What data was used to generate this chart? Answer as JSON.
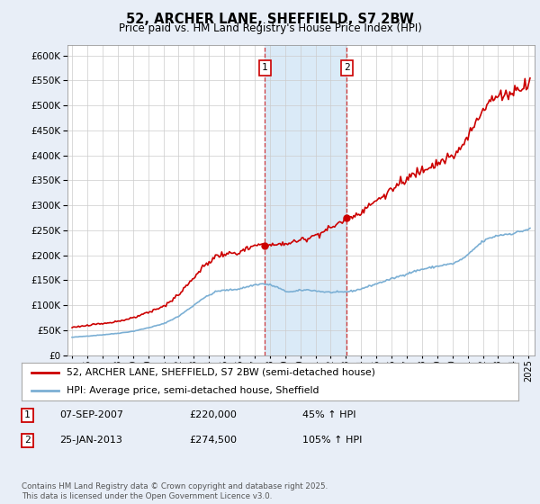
{
  "title": "52, ARCHER LANE, SHEFFIELD, S7 2BW",
  "subtitle": "Price paid vs. HM Land Registry's House Price Index (HPI)",
  "ylim": [
    0,
    620000
  ],
  "yticks": [
    0,
    50000,
    100000,
    150000,
    200000,
    250000,
    300000,
    350000,
    400000,
    450000,
    500000,
    550000,
    600000
  ],
  "xlim_start": 1994.7,
  "xlim_end": 2025.4,
  "bg_color": "#e8eef7",
  "plot_bg_color": "#ffffff",
  "red_color": "#cc0000",
  "blue_color": "#7bafd4",
  "shade_color": "#daeaf7",
  "transaction1_x": 2007.68,
  "transaction1_y": 220000,
  "transaction2_x": 2013.06,
  "transaction2_y": 274500,
  "legend_label1": "52, ARCHER LANE, SHEFFIELD, S7 2BW (semi-detached house)",
  "legend_label2": "HPI: Average price, semi-detached house, Sheffield",
  "footer": "Contains HM Land Registry data © Crown copyright and database right 2025.\nThis data is licensed under the Open Government Licence v3.0."
}
